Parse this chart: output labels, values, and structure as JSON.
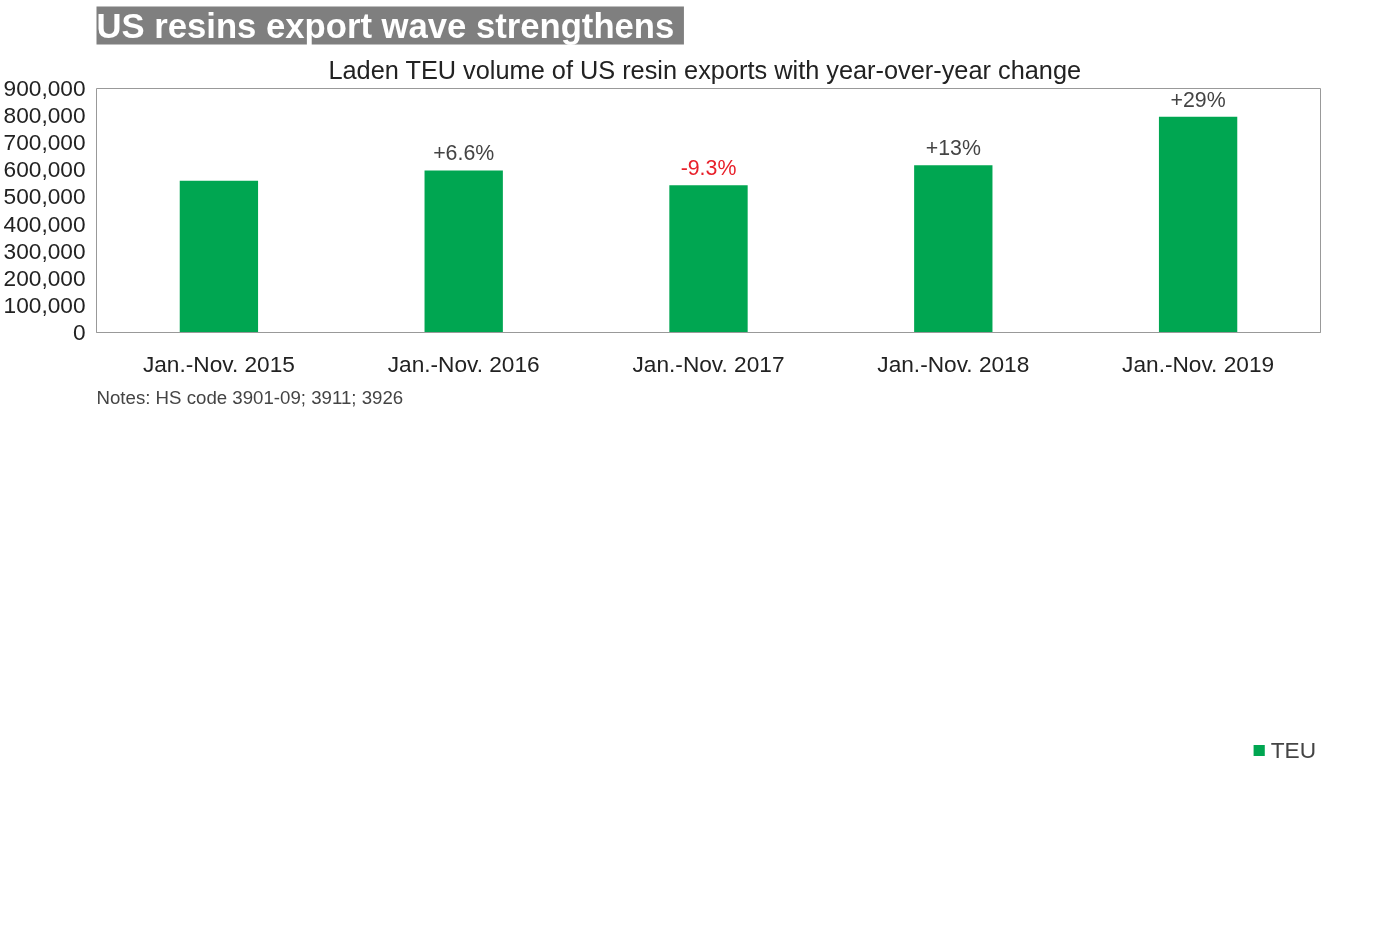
{
  "chart_data": {
    "type": "bar",
    "title": "US resins  export wave strengthens",
    "subtitle": "Laden TEU  volume of US resin exports with year-over-year change",
    "categories": [
      "Jan.-Nov. 2015",
      "Jan.-Nov. 2016",
      "Jan.-Nov. 2017",
      "Jan.-Nov. 2018",
      "Jan.-Nov. 2019"
    ],
    "series": [
      {
        "name": "TEU",
        "color": "#00a651",
        "values": [
          560000,
          598000,
          543000,
          617000,
          796000
        ]
      }
    ],
    "ylim": [
      0,
      900000
    ],
    "yticks": [
      {
        "value": 0,
        "label": "0"
      },
      {
        "value": 100000,
        "label": "100,000"
      },
      {
        "value": 200000,
        "label": "200,000"
      },
      {
        "value": 300000,
        "label": "300,000"
      },
      {
        "value": 400000,
        "label": "400,000"
      },
      {
        "value": 500000,
        "label": "500,000"
      },
      {
        "value": 600000,
        "label": "600,000"
      },
      {
        "value": 700000,
        "label": "700,000"
      },
      {
        "value": 800000,
        "label": "800,000"
      },
      {
        "value": 900000,
        "label": "900,000"
      }
    ],
    "grid": false,
    "legend": "bottom",
    "annotations": [
      {
        "text": "+6.6%",
        "x": "Jan.-Nov. 2016",
        "y": 598000
      },
      {
        "text": "-9.3%",
        "x": "Jan.-Nov. 2017",
        "y": 543000
      },
      {
        "text": "+13%",
        "x": "Jan.-Nov. 2018",
        "y": 617000
      },
      {
        "text": "+29%",
        "x": "Jan.-Nov. 2019",
        "y": 796000
      },
      "Notes: HS code 3901-09; 3911; 3926"
    ]
  }
}
